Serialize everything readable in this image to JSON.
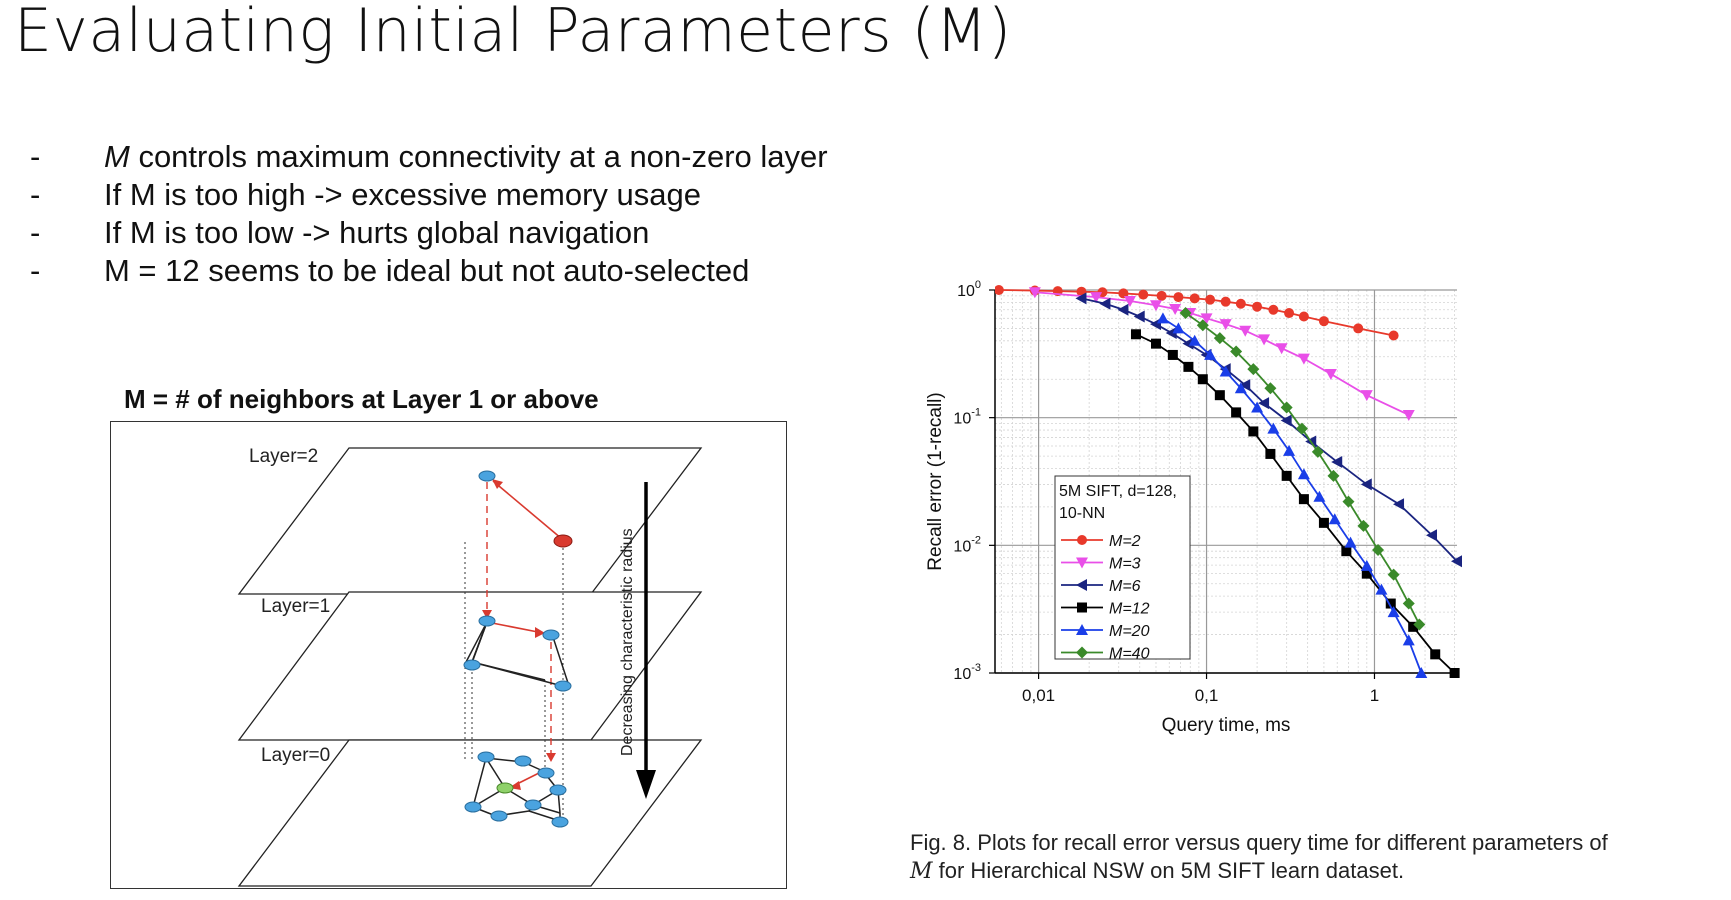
{
  "slide": {
    "title": "Evaluating Initial Parameters (M)",
    "bullets": [
      {
        "dash": "-",
        "italic": "M",
        "text": " controls maximum connectivity at a non-zero layer"
      },
      {
        "dash": "-",
        "italic": "",
        "text": "If M is too high -> excessive memory usage"
      },
      {
        "dash": "-",
        "italic": "",
        "text": "If M is too low -> hurts global navigation"
      },
      {
        "dash": "-",
        "italic": "",
        "text": "M = 12 seems to be ideal but not auto-selected"
      }
    ]
  },
  "diagram": {
    "heading": "M = # of neighbors at Layer 1 or above",
    "layer_labels": [
      "Layer=2",
      "Layer=1",
      "Layer=0"
    ],
    "arrow_label": "Decreasing characteristic radius",
    "colors": {
      "node": "#4aa3df",
      "entry": "#d93a2f",
      "target": "#8fd16a",
      "edge_red": "#d93a2f"
    }
  },
  "chart_data": {
    "type": "line",
    "xscale": "log",
    "yscale": "log",
    "xlabel": "Query time, ms",
    "ylabel": "Recall error (1-recall)",
    "xlim": [
      0.0055,
      3.1
    ],
    "ylim": [
      0.001,
      1
    ],
    "x_ticks": [
      {
        "v": 0.01,
        "label": "0,01"
      },
      {
        "v": 0.1,
        "label": "0,1"
      },
      {
        "v": 1,
        "label": "1"
      }
    ],
    "y_ticks": [
      {
        "v": 1,
        "base": "10",
        "exp": "0"
      },
      {
        "v": 0.1,
        "base": "10",
        "exp": "-1"
      },
      {
        "v": 0.01,
        "base": "10",
        "exp": "-2"
      },
      {
        "v": 0.001,
        "base": "10",
        "exp": "-3"
      }
    ],
    "grid": true,
    "legend": {
      "position": "lower-left",
      "title_lines": [
        "5M SIFT, d=128,",
        "10-NN"
      ]
    },
    "series": [
      {
        "name": "M=2",
        "color": "#e8392b",
        "marker": "circle",
        "x": [
          0.0058,
          0.0095,
          0.013,
          0.018,
          0.024,
          0.032,
          0.042,
          0.054,
          0.068,
          0.085,
          0.105,
          0.13,
          0.16,
          0.2,
          0.25,
          0.31,
          0.38,
          0.5,
          0.8,
          1.3
        ],
        "y": [
          1.0,
          0.99,
          0.98,
          0.97,
          0.96,
          0.94,
          0.92,
          0.9,
          0.88,
          0.86,
          0.84,
          0.81,
          0.78,
          0.74,
          0.7,
          0.66,
          0.62,
          0.57,
          0.5,
          0.44
        ]
      },
      {
        "name": "M=3",
        "color": "#e94fe8",
        "marker": "triangle-down",
        "x": [
          0.0095,
          0.022,
          0.035,
          0.05,
          0.065,
          0.08,
          0.1,
          0.13,
          0.17,
          0.22,
          0.28,
          0.38,
          0.55,
          0.9,
          1.6
        ],
        "y": [
          0.96,
          0.88,
          0.82,
          0.76,
          0.71,
          0.66,
          0.6,
          0.54,
          0.48,
          0.41,
          0.35,
          0.29,
          0.22,
          0.15,
          0.105
        ]
      },
      {
        "name": "M=6",
        "color": "#1a2480",
        "marker": "triangle-left",
        "x": [
          0.018,
          0.025,
          0.032,
          0.04,
          0.05,
          0.062,
          0.078,
          0.1,
          0.13,
          0.17,
          0.22,
          0.3,
          0.42,
          0.6,
          0.9,
          1.4,
          2.2,
          3.1
        ],
        "y": [
          0.86,
          0.78,
          0.7,
          0.62,
          0.54,
          0.46,
          0.38,
          0.31,
          0.24,
          0.18,
          0.13,
          0.095,
          0.065,
          0.045,
          0.03,
          0.021,
          0.012,
          0.0075
        ]
      },
      {
        "name": "M=12",
        "color": "#000000",
        "marker": "square",
        "x": [
          0.038,
          0.05,
          0.063,
          0.078,
          0.095,
          0.12,
          0.15,
          0.19,
          0.24,
          0.3,
          0.38,
          0.5,
          0.68,
          0.9,
          1.25,
          1.7,
          2.3,
          3.0
        ],
        "y": [
          0.45,
          0.38,
          0.31,
          0.25,
          0.2,
          0.15,
          0.11,
          0.078,
          0.052,
          0.035,
          0.023,
          0.015,
          0.009,
          0.006,
          0.0035,
          0.0023,
          0.0014,
          0.001
        ]
      },
      {
        "name": "M=20",
        "color": "#1a3ee8",
        "marker": "triangle-up",
        "x": [
          0.055,
          0.068,
          0.085,
          0.105,
          0.13,
          0.16,
          0.2,
          0.25,
          0.31,
          0.38,
          0.47,
          0.58,
          0.72,
          0.9,
          1.1,
          1.3,
          1.6,
          1.9
        ],
        "y": [
          0.6,
          0.5,
          0.4,
          0.31,
          0.23,
          0.17,
          0.12,
          0.082,
          0.055,
          0.036,
          0.024,
          0.016,
          0.0105,
          0.0069,
          0.0045,
          0.003,
          0.0018,
          0.001
        ]
      },
      {
        "name": "M=40",
        "color": "#3a8a2a",
        "marker": "diamond",
        "x": [
          0.075,
          0.095,
          0.12,
          0.15,
          0.19,
          0.24,
          0.3,
          0.37,
          0.46,
          0.57,
          0.7,
          0.86,
          1.05,
          1.3,
          1.6,
          1.85
        ],
        "y": [
          0.66,
          0.53,
          0.42,
          0.33,
          0.24,
          0.17,
          0.12,
          0.082,
          0.054,
          0.035,
          0.022,
          0.0142,
          0.0092,
          0.0059,
          0.0035,
          0.0024
        ]
      }
    ]
  },
  "figure_caption": {
    "line1": "Fig. 8. Plots for recall error versus query time for different parameters of",
    "line2_math": "M",
    "line2_rest": " for Hierarchical NSW on 5M SIFT learn dataset."
  }
}
